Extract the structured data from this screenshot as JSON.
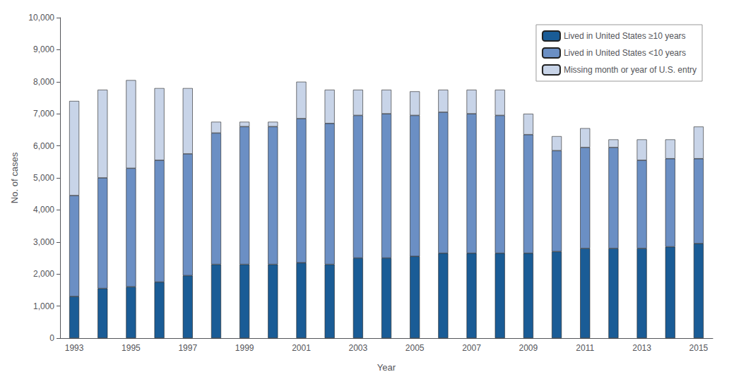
{
  "chart_data": {
    "type": "bar",
    "stacked": true,
    "x_label": "Year",
    "y_label": "No. of cases",
    "categories": [
      "1993",
      null,
      "1995",
      null,
      "1997",
      null,
      "1999",
      null,
      "2001",
      null,
      "2003",
      null,
      "2005",
      null,
      "2007",
      null,
      "2009",
      null,
      "2011",
      null,
      "2013",
      null,
      "2015"
    ],
    "series": [
      {
        "name": "Lived in United States ≥10 years",
        "color": "#1a5c96",
        "values": [
          1300,
          1550,
          1600,
          1750,
          1950,
          2300,
          2300,
          2300,
          2350,
          2300,
          2500,
          2500,
          2550,
          2650,
          2650,
          2650,
          2650,
          2700,
          2800,
          2800,
          2800,
          2850,
          2950
        ]
      },
      {
        "name": "Lived in United States <10 years",
        "color": "#6b8fc4",
        "values": [
          3150,
          3450,
          3700,
          3800,
          3800,
          4100,
          4300,
          4300,
          4500,
          4400,
          4450,
          4500,
          4400,
          4400,
          4350,
          4300,
          3700,
          3150,
          3150,
          3150,
          2750,
          2750,
          2650
        ]
      },
      {
        "name": "Missing month or year of U.S. entry",
        "color": "#c8d4e8",
        "values": [
          2950,
          2750,
          2750,
          2250,
          2050,
          350,
          150,
          150,
          1150,
          1050,
          800,
          750,
          750,
          700,
          750,
          800,
          650,
          450,
          600,
          250,
          650,
          600,
          1000
        ]
      }
    ],
    "ylim": [
      0,
      10000
    ],
    "yticks": [
      0,
      {
        "value": 1000,
        "label": "1,000"
      },
      {
        "value": 2000,
        "label": "2,000"
      },
      {
        "value": 3000,
        "label": "3,000"
      },
      {
        "value": 4000,
        "label": "4,000"
      },
      {
        "value": 5000,
        "label": "5,000"
      },
      {
        "value": 6000,
        "label": "6,000"
      },
      {
        "value": 7000,
        "label": "7,000"
      },
      {
        "value": 8000,
        "label": "8,000"
      },
      {
        "value": 9000,
        "label": "9,000"
      },
      {
        "value": 10000,
        "label": "10,000"
      }
    ],
    "grid": false,
    "legend": "upper right"
  }
}
